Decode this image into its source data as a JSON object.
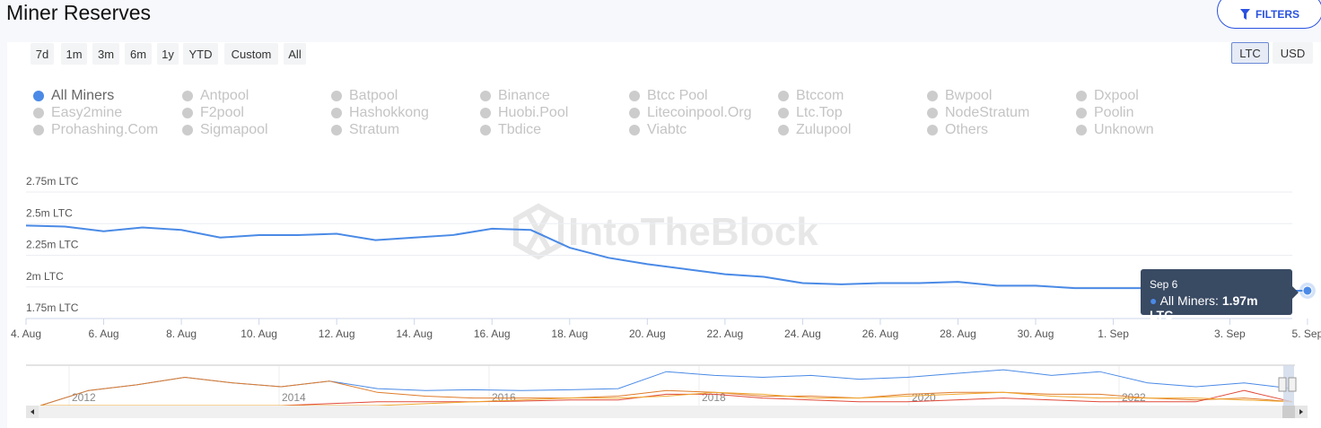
{
  "header": {
    "title": "Miner Reserves",
    "filters_label": "FILTERS"
  },
  "ranges": [
    "7d",
    "1m",
    "3m",
    "6m",
    "1y",
    "YTD",
    "Custom",
    "All"
  ],
  "currency": {
    "options": [
      "LTC",
      "USD"
    ],
    "selected": "LTC"
  },
  "legend": [
    "All Miners",
    "Antpool",
    "Batpool",
    "Binance",
    "Btcc Pool",
    "Btccom",
    "Bwpool",
    "Dxpool",
    "Easy2mine",
    "F2pool",
    "Hashokkong",
    "Huobi.Pool",
    "Litecoinpool.Org",
    "Ltc.Top",
    "NodeStratum",
    "Poolin",
    "Prohashing.Com",
    "Sigmapool",
    "Stratum",
    "Tbdice",
    "Viabtc",
    "Zulupool",
    "Others",
    "Unknown"
  ],
  "legend_active": "All Miners",
  "colors": {
    "series": "#4a8ae6",
    "tooltip": "#394a63",
    "accent": "#2a52e0"
  },
  "tooltip": {
    "date": "Sep 6",
    "series": "All Miners: ",
    "value": "1.97m LTC"
  },
  "watermark": "IntoTheBlock",
  "chart_data": {
    "type": "line",
    "ylim": [
      1.75,
      2.75
    ],
    "yticks": [
      "1.75m LTC",
      "2m LTC",
      "2.25m LTC",
      "2.5m LTC",
      "2.75m LTC"
    ],
    "ytick_values": [
      1.75,
      2,
      2.25,
      2.5,
      2.75
    ],
    "xticks": [
      "4. Aug",
      "6. Aug",
      "8. Aug",
      "10. Aug",
      "12. Aug",
      "14. Aug",
      "16. Aug",
      "18. Aug",
      "20. Aug",
      "22. Aug",
      "24. Aug",
      "26. Aug",
      "28. Aug",
      "30. Aug",
      "1. Sep",
      "3. Sep",
      "5. Sep"
    ],
    "x": [
      "Aug 4",
      "Aug 5",
      "Aug 6",
      "Aug 7",
      "Aug 8",
      "Aug 9",
      "Aug 10",
      "Aug 11",
      "Aug 12",
      "Aug 13",
      "Aug 14",
      "Aug 15",
      "Aug 16",
      "Aug 17",
      "Aug 18",
      "Aug 19",
      "Aug 20",
      "Aug 21",
      "Aug 22",
      "Aug 23",
      "Aug 24",
      "Aug 25",
      "Aug 26",
      "Aug 27",
      "Aug 28",
      "Aug 29",
      "Aug 30",
      "Aug 31",
      "Sep 1",
      "Sep 2",
      "Sep 3",
      "Sep 4",
      "Sep 5",
      "Sep 6"
    ],
    "series": [
      {
        "name": "All Miners",
        "values": [
          2.485,
          2.477,
          2.44,
          2.47,
          2.45,
          2.39,
          2.41,
          2.41,
          2.42,
          2.37,
          2.39,
          2.41,
          2.46,
          2.45,
          2.31,
          2.23,
          2.18,
          2.14,
          2.1,
          2.08,
          2.03,
          2.02,
          2.03,
          2.03,
          2.04,
          2.01,
          2.01,
          1.99,
          1.99,
          1.99,
          1.98,
          1.98,
          1.97,
          1.97
        ]
      }
    ],
    "navigator": {
      "xticks": [
        "2012",
        "2014",
        "2016",
        "2018",
        "2020",
        "2022"
      ],
      "series": [
        {
          "color": "#4a8ae6",
          "values": [
            0,
            0.4,
            0.55,
            0.75,
            0.6,
            0.5,
            0.65,
            0.45,
            0.4,
            0.42,
            0.4,
            0.42,
            0.45,
            0.9,
            0.8,
            0.75,
            0.8,
            0.7,
            0.75,
            0.85,
            0.95,
            0.8,
            0.9,
            0.6,
            0.5,
            0.6,
            0.45
          ]
        },
        {
          "color": "#e07b2a",
          "values": [
            0,
            0.4,
            0.55,
            0.75,
            0.6,
            0.5,
            0.65,
            0.35,
            0.25,
            0.2,
            0.2,
            0.2,
            0.25,
            0.4,
            0.35,
            0.25,
            0.25,
            0.2,
            0.3,
            0.35,
            0.35,
            0.3,
            0.3,
            0.2,
            0.15,
            0.2,
            0.1
          ]
        },
        {
          "color": "#e04a3a",
          "values": [
            0,
            0,
            0,
            0,
            0,
            0,
            0.05,
            0.1,
            0.1,
            0.1,
            0.12,
            0.15,
            0.15,
            0.3,
            0.3,
            0.2,
            0.15,
            0.1,
            0.1,
            0.15,
            0.2,
            0.15,
            0.1,
            0.1,
            0.1,
            0.4,
            0.1
          ]
        },
        {
          "color": "#f0a830",
          "values": [
            0,
            0,
            0,
            0,
            0,
            0,
            0,
            0,
            0.05,
            0.1,
            0.15,
            0.2,
            0.2,
            0.25,
            0.35,
            0.3,
            0.2,
            0.2,
            0.25,
            0.3,
            0.35,
            0.25,
            0.2,
            0.2,
            0.2,
            0.15,
            0.1
          ]
        }
      ]
    }
  }
}
